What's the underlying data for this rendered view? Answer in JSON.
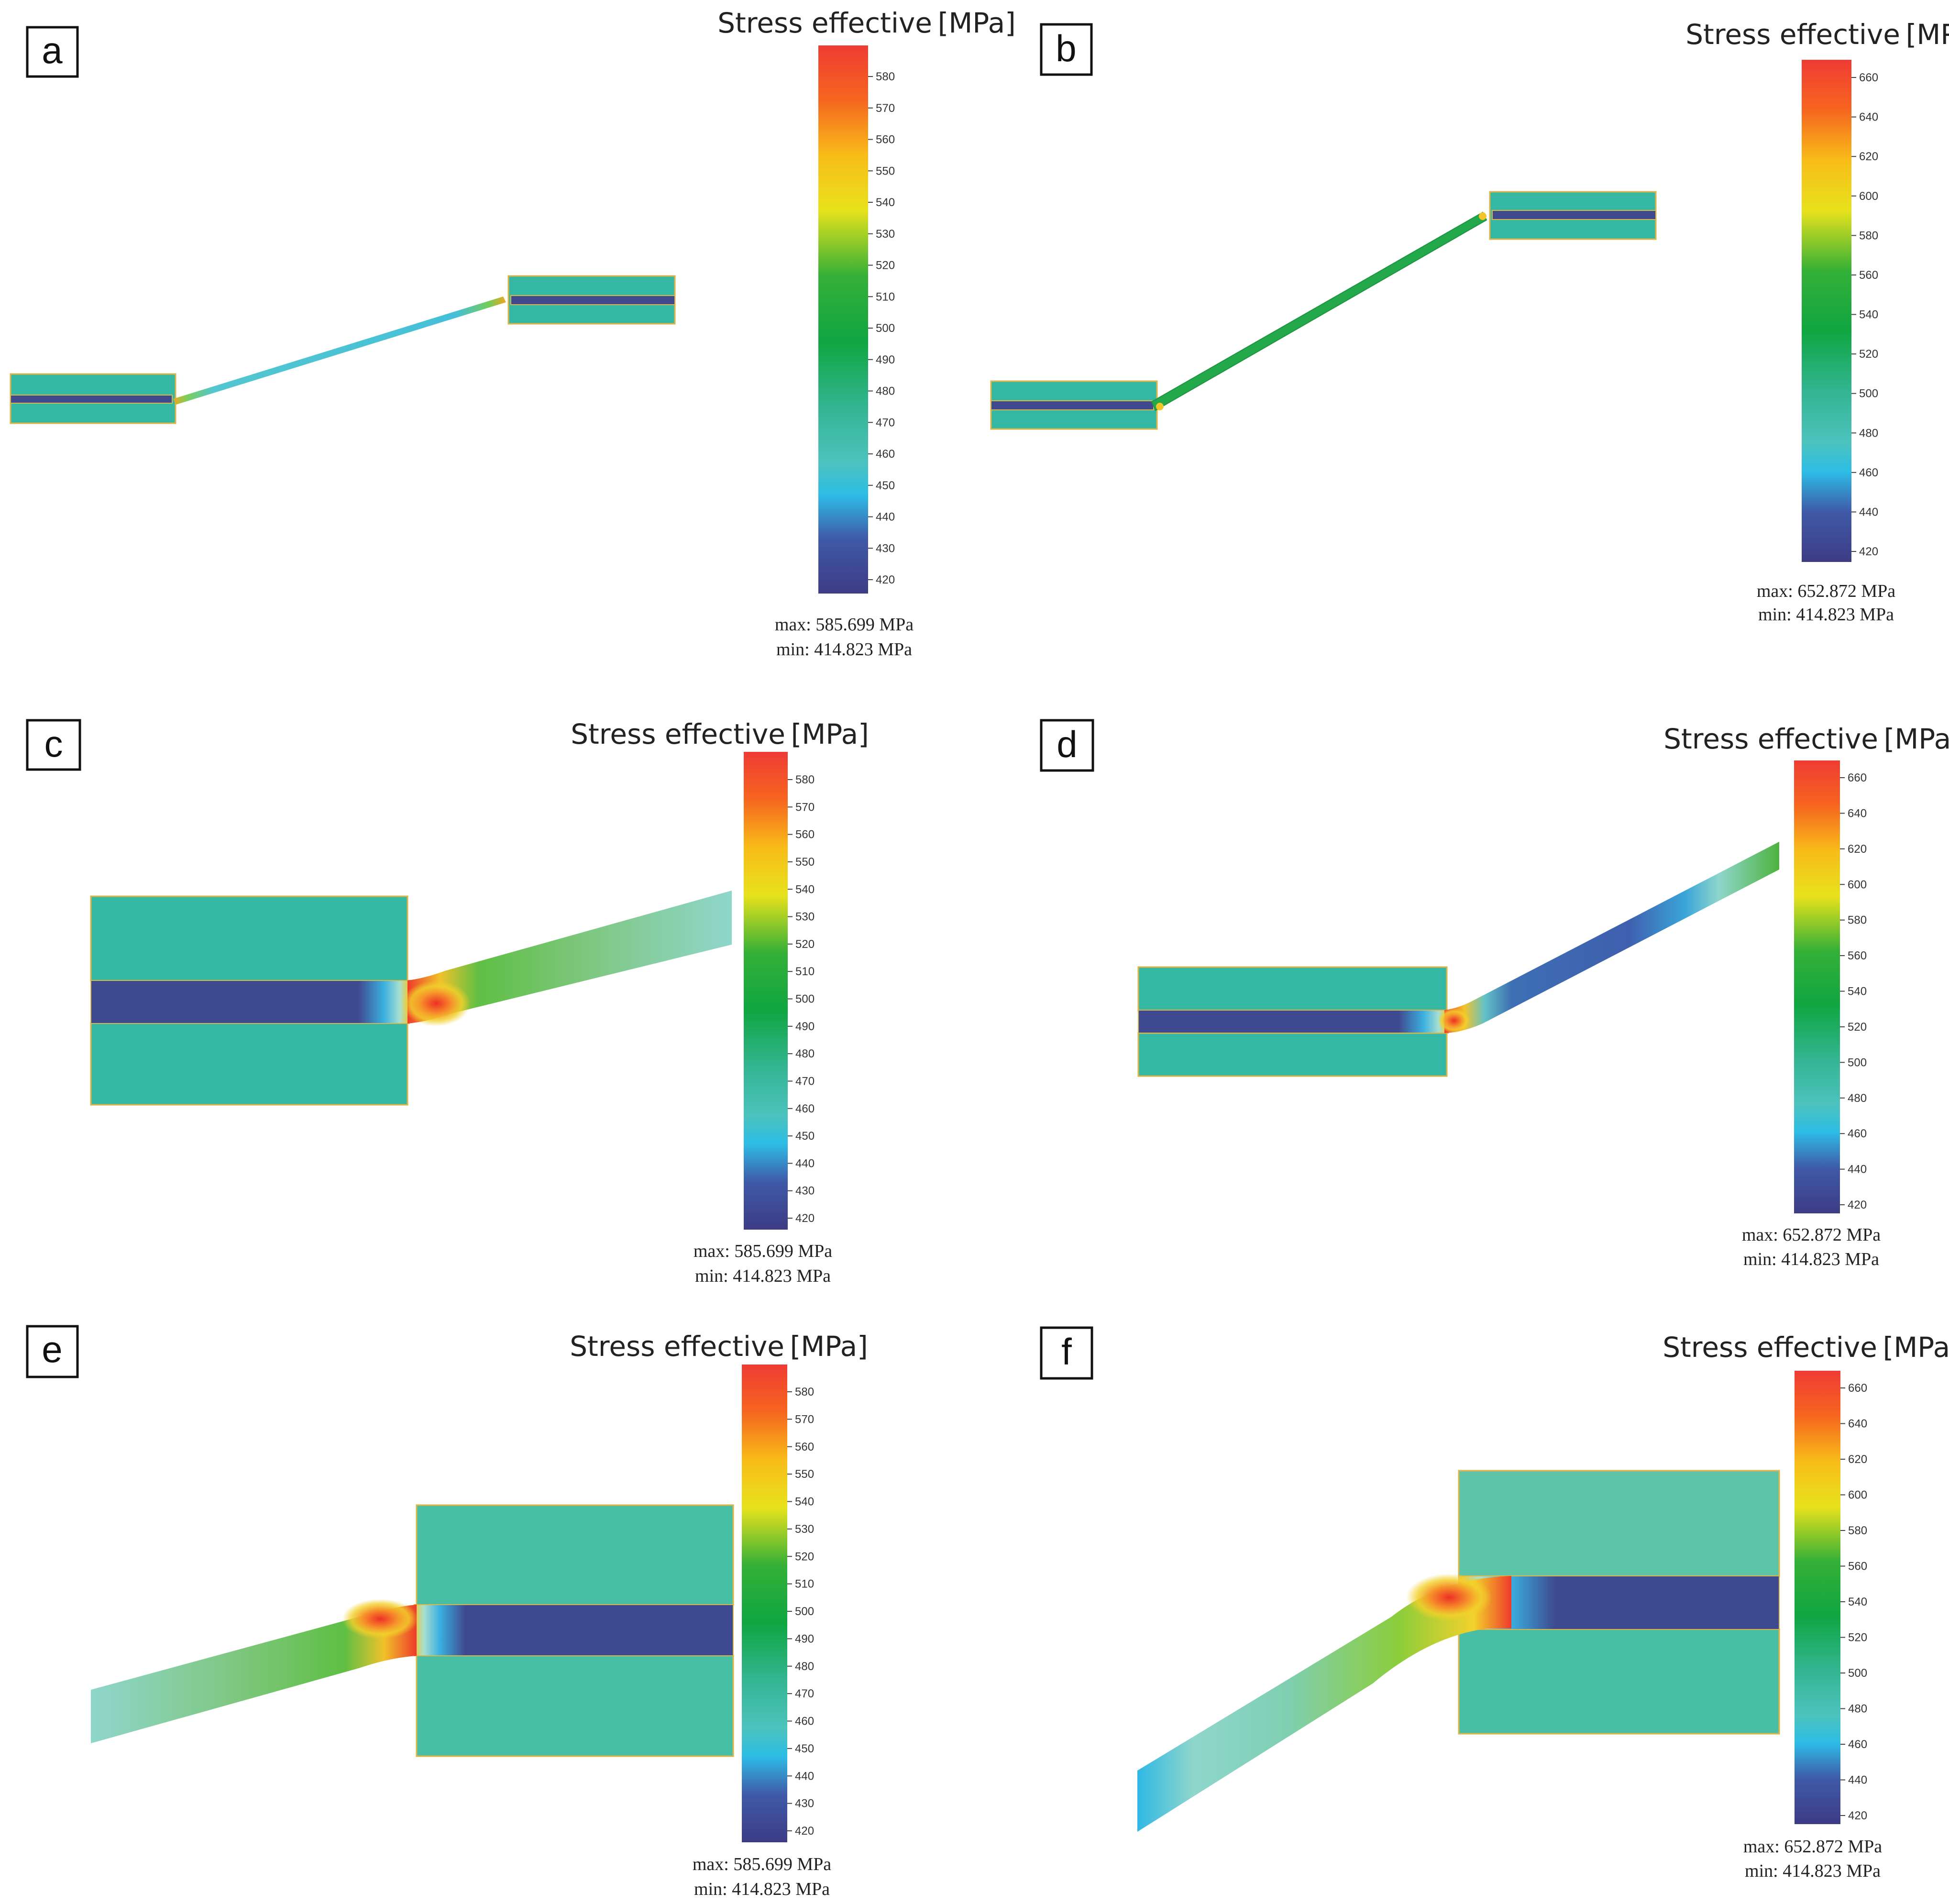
{
  "figure": {
    "panels": [
      {
        "label": "a",
        "title": "Stress effective [MPa]",
        "max_text": "max: 585.699 MPa",
        "min_text": "min: 414.823 MPa",
        "ticks": [
          "580",
          "570",
          "560",
          "550",
          "540",
          "530",
          "520",
          "510",
          "500",
          "490",
          "480",
          "470",
          "460",
          "450",
          "440",
          "430",
          "420"
        ]
      },
      {
        "label": "b",
        "title": "Stress effective [MPa]",
        "max_text": "max: 652.872 MPa",
        "min_text": "min: 414.823 MPa",
        "ticks": [
          "660",
          "640",
          "620",
          "600",
          "580",
          "560",
          "540",
          "520",
          "500",
          "480",
          "460",
          "440",
          "420"
        ]
      },
      {
        "label": "c",
        "title": "Stress effective [MPa]",
        "max_text": "max: 585.699 MPa",
        "min_text": "min: 414.823 MPa",
        "ticks": [
          "580",
          "570",
          "560",
          "550",
          "540",
          "530",
          "520",
          "510",
          "500",
          "490",
          "480",
          "470",
          "460",
          "450",
          "440",
          "430",
          "420"
        ]
      },
      {
        "label": "d",
        "title": "Stress effective [MPa]",
        "max_text": "max: 652.872 MPa",
        "min_text": "min: 414.823 MPa",
        "ticks": [
          "660",
          "640",
          "620",
          "600",
          "580",
          "560",
          "540",
          "520",
          "500",
          "480",
          "460",
          "440",
          "420"
        ]
      },
      {
        "label": "e",
        "title": "Stress effective [MPa]",
        "max_text": "max: 585.699 MPa",
        "min_text": "min: 414.823 MPa",
        "ticks": [
          "580",
          "570",
          "560",
          "550",
          "540",
          "530",
          "520",
          "510",
          "500",
          "490",
          "480",
          "470",
          "460",
          "450",
          "440",
          "430",
          "420"
        ]
      },
      {
        "label": "f",
        "title": "Stress effective [MPa]",
        "max_text": "max: 652.872 MPa",
        "min_text": "min: 414.823 MPa",
        "ticks": [
          "660",
          "640",
          "620",
          "600",
          "580",
          "560",
          "540",
          "520",
          "500",
          "480",
          "460",
          "440",
          "420"
        ]
      }
    ]
  },
  "colors": {
    "teal": "#35b8a3",
    "teal_light": "#5cc4a8",
    "navy": "#3f4a8e",
    "outline": "#d9b54a",
    "green": "#23a84a"
  }
}
